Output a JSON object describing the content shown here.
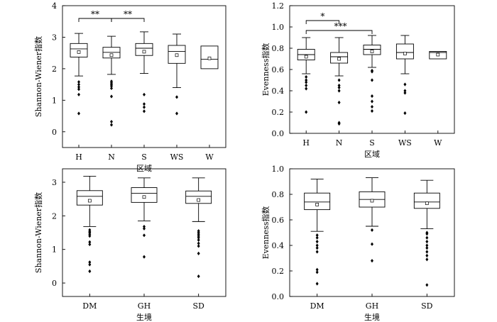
{
  "chart_data": [
    {
      "type": "box",
      "ylabel": "Shannon-Wiener指数",
      "xlabel": "区域",
      "categories": [
        "H",
        "N",
        "S",
        "WS",
        "W"
      ],
      "ylim": [
        -0.5,
        4
      ],
      "yticks": [
        0,
        1,
        2,
        3,
        4
      ],
      "boxes": [
        {
          "whislo": 1.77,
          "q1": 2.37,
          "med": 2.63,
          "q3": 2.8,
          "whishi": 3.12,
          "mean": 2.53,
          "outliers": [
            1.58,
            1.5,
            1.42,
            1.35,
            1.18,
            0.58
          ]
        },
        {
          "whislo": 1.82,
          "q1": 2.34,
          "med": 2.52,
          "q3": 2.68,
          "whishi": 3.03,
          "mean": 2.43,
          "outliers": [
            1.6,
            1.55,
            1.5,
            1.45,
            1.38,
            1.12,
            0.32,
            0.22
          ]
        },
        {
          "whislo": 1.85,
          "q1": 2.42,
          "med": 2.65,
          "q3": 2.8,
          "whishi": 3.17,
          "mean": 2.54,
          "outliers": [
            1.18,
            0.88,
            0.78,
            0.65
          ]
        },
        {
          "whislo": 1.4,
          "q1": 2.17,
          "med": 2.55,
          "q3": 2.74,
          "whishi": 3.1,
          "mean": 2.43,
          "outliers": [
            1.1,
            0.58
          ]
        },
        {
          "whislo": 2.0,
          "q1": 2.0,
          "med": 2.3,
          "q3": 2.72,
          "whishi": 2.72,
          "mean": 2.33,
          "outliers": []
        }
      ],
      "annotations": [
        {
          "text": "**",
          "from": "H",
          "to": "N"
        },
        {
          "text": "**",
          "from": "N",
          "to": "S"
        }
      ]
    },
    {
      "type": "box",
      "ylabel": "Evenness指数",
      "xlabel": "区域",
      "categories": [
        "H",
        "N",
        "S",
        "WS",
        "W"
      ],
      "ylim": [
        0.0,
        1.2
      ],
      "yticks": [
        0.0,
        0.2,
        0.4,
        0.6,
        0.8,
        1.0,
        1.2
      ],
      "boxes": [
        {
          "whislo": 0.56,
          "q1": 0.69,
          "med": 0.74,
          "q3": 0.79,
          "whishi": 0.9,
          "mean": 0.72,
          "outliers": [
            0.53,
            0.5,
            0.48,
            0.45,
            0.42,
            0.2
          ]
        },
        {
          "whislo": 0.54,
          "q1": 0.66,
          "med": 0.72,
          "q3": 0.76,
          "whishi": 0.9,
          "mean": 0.7,
          "outliers": [
            0.5,
            0.45,
            0.43,
            0.4,
            0.29,
            0.1,
            0.09
          ]
        },
        {
          "whislo": 0.62,
          "q1": 0.74,
          "med": 0.79,
          "q3": 0.83,
          "whishi": 0.92,
          "mean": 0.77,
          "outliers": [
            0.59,
            0.58,
            0.5,
            0.35,
            0.3,
            0.25,
            0.21
          ]
        },
        {
          "whislo": 0.56,
          "q1": 0.7,
          "med": 0.76,
          "q3": 0.84,
          "whishi": 0.92,
          "mean": 0.75,
          "outliers": [
            0.46,
            0.4,
            0.38,
            0.19
          ]
        },
        {
          "whislo": 0.7,
          "q1": 0.7,
          "med": 0.76,
          "q3": 0.77,
          "whishi": 0.77,
          "mean": 0.74,
          "outliers": []
        }
      ],
      "annotations": [
        {
          "text": "*",
          "from": "H",
          "to": "N"
        },
        {
          "text": "***",
          "from": "H",
          "to": "S"
        }
      ]
    },
    {
      "type": "box",
      "ylabel": "Shannon-Wiener指数",
      "xlabel": "生境",
      "categories": [
        "DM",
        "GH",
        "SD"
      ],
      "ylim": [
        -0.4,
        3.4
      ],
      "yticks": [
        0,
        1,
        2,
        3
      ],
      "boxes": [
        {
          "whislo": 1.68,
          "q1": 2.32,
          "med": 2.58,
          "q3": 2.75,
          "whishi": 3.18,
          "mean": 2.45,
          "outliers": [
            1.58,
            1.53,
            1.5,
            1.45,
            1.4,
            1.22,
            1.15,
            0.62,
            0.55,
            0.35
          ]
        },
        {
          "whislo": 1.85,
          "q1": 2.4,
          "med": 2.67,
          "q3": 2.84,
          "whishi": 3.13,
          "mean": 2.56,
          "outliers": [
            1.68,
            1.62,
            1.42,
            0.78
          ]
        },
        {
          "whislo": 1.83,
          "q1": 2.37,
          "med": 2.58,
          "q3": 2.74,
          "whishi": 3.13,
          "mean": 2.47,
          "outliers": [
            1.55,
            1.5,
            1.45,
            1.4,
            1.35,
            1.28,
            1.18,
            1.1,
            0.88,
            0.2
          ]
        }
      ],
      "annotations": []
    },
    {
      "type": "box",
      "ylabel": "Evenness指数",
      "xlabel": "生境",
      "categories": [
        "DM",
        "GH",
        "SD"
      ],
      "ylim": [
        0.0,
        1.0
      ],
      "yticks": [
        0.0,
        0.2,
        0.4,
        0.6,
        0.8,
        1.0
      ],
      "boxes": [
        {
          "whislo": 0.51,
          "q1": 0.68,
          "med": 0.74,
          "q3": 0.81,
          "whishi": 0.92,
          "mean": 0.72,
          "outliers": [
            0.48,
            0.46,
            0.43,
            0.4,
            0.38,
            0.35,
            0.21,
            0.19,
            0.1
          ]
        },
        {
          "whislo": 0.55,
          "q1": 0.7,
          "med": 0.76,
          "q3": 0.82,
          "whishi": 0.93,
          "mean": 0.75,
          "outliers": [
            0.52,
            0.41,
            0.28
          ]
        },
        {
          "whislo": 0.53,
          "q1": 0.69,
          "med": 0.74,
          "q3": 0.81,
          "whishi": 0.91,
          "mean": 0.73,
          "outliers": [
            0.5,
            0.49,
            0.46,
            0.43,
            0.4,
            0.38,
            0.35,
            0.32,
            0.29,
            0.09
          ]
        }
      ],
      "annotations": []
    }
  ]
}
